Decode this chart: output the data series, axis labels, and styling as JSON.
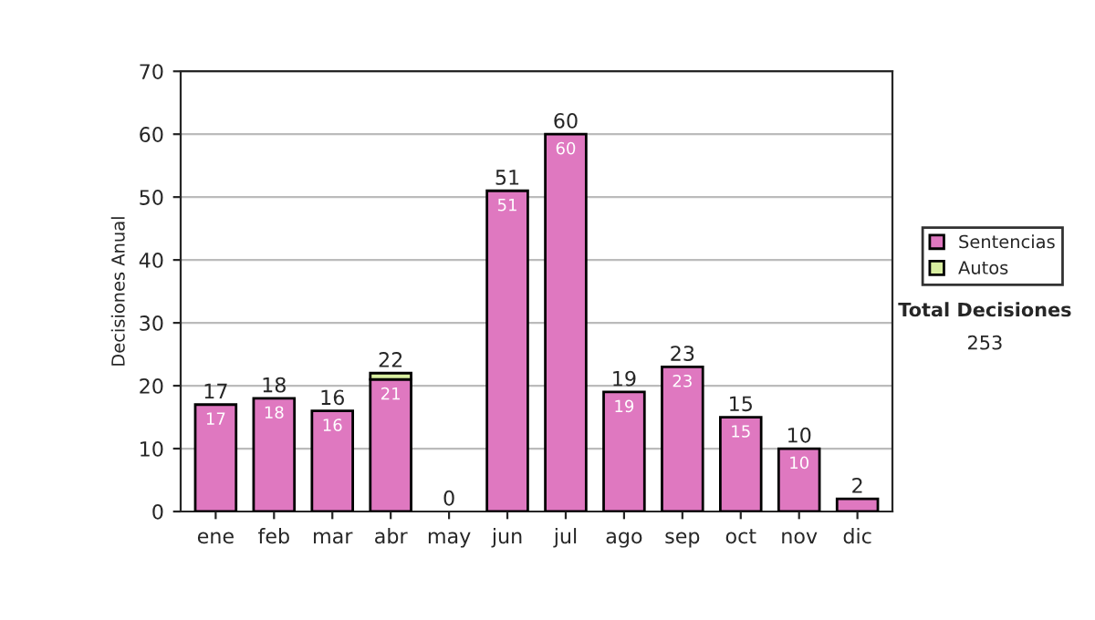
{
  "chart_data": {
    "type": "bar",
    "stacked": true,
    "ylabel": "Decisiones Anual",
    "categories": [
      "ene",
      "feb",
      "mar",
      "abr",
      "may",
      "jun",
      "jul",
      "ago",
      "sep",
      "oct",
      "nov",
      "dic"
    ],
    "series": [
      {
        "name": "Sentencias",
        "color": "#df78c0",
        "values": [
          17,
          18,
          16,
          21,
          0,
          51,
          60,
          19,
          23,
          15,
          10,
          2
        ],
        "value_labels": [
          "17",
          "18",
          "16",
          "21",
          null,
          "51",
          "60",
          "19",
          "23",
          "15",
          "10",
          null
        ]
      },
      {
        "name": "Autos",
        "color": "#d8eea0",
        "values": [
          0,
          0,
          0,
          1,
          0,
          0,
          0,
          0,
          0,
          0,
          0,
          0
        ]
      }
    ],
    "totals": [
      "17",
      "18",
      "16",
      "22",
      "0",
      "51",
      "60",
      "19",
      "23",
      "15",
      "10",
      "2"
    ],
    "ylim": [
      0,
      70
    ],
    "yticks": [
      0,
      10,
      20,
      30,
      40,
      50,
      60,
      70
    ],
    "grid": "y",
    "legend": "right",
    "annotations": [
      "Total Decisiones",
      "253"
    ]
  }
}
